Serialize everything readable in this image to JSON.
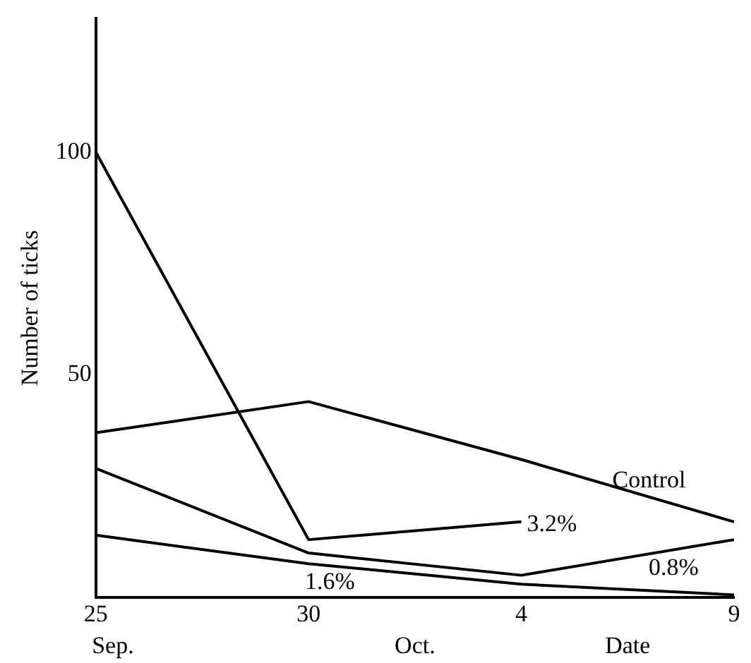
{
  "chart_data": {
    "type": "line",
    "xlabel": "Date",
    "ylabel": "Number of ticks",
    "categories": [
      "25",
      "30",
      "4",
      "9"
    ],
    "ylim": [
      0,
      130
    ],
    "yticks": [
      50,
      100
    ],
    "grid": false,
    "legend": false,
    "marker": "none",
    "line_style": "solid",
    "annotations": [
      "Sep.",
      "Oct."
    ],
    "series": [
      {
        "name": "Control",
        "color": "#000000",
        "values": [
          37,
          44,
          31,
          17
        ]
      },
      {
        "name": "3.2%",
        "color": "#000000",
        "values": [
          100,
          13,
          17,
          null
        ]
      },
      {
        "name": "0.8%",
        "color": "#000000",
        "values": [
          29,
          10,
          5,
          13
        ]
      },
      {
        "name": "1.6%",
        "color": "#000000",
        "values": [
          14,
          7.6,
          3,
          0.6
        ]
      }
    ]
  }
}
